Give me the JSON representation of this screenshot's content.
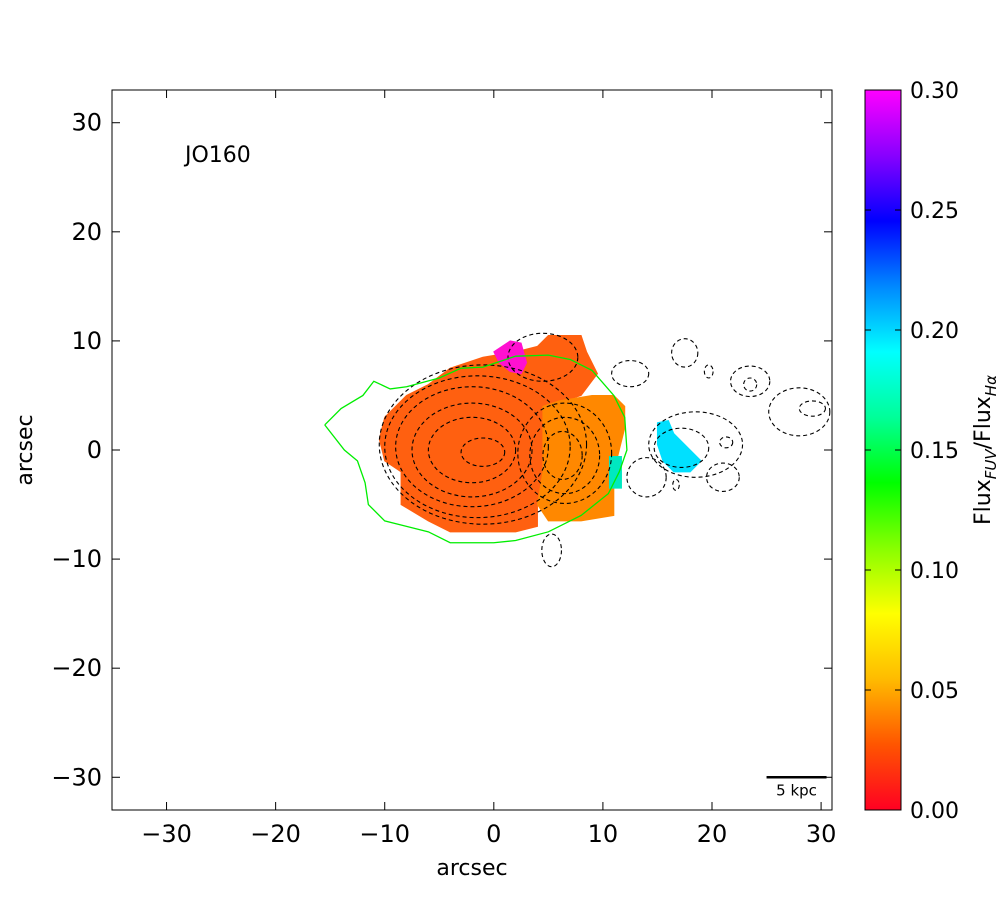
{
  "chart_data": {
    "type": "heatmap",
    "object_label": "JO160",
    "xlabel": "arcsec",
    "ylabel": "arcsec",
    "xlim": [
      -35,
      31
    ],
    "ylim": [
      -33,
      33
    ],
    "x_ticks": [
      -30,
      -20,
      -10,
      0,
      10,
      20,
      30
    ],
    "x_tick_labels": [
      "−30",
      "−20",
      "−10",
      "0",
      "10",
      "20",
      "30"
    ],
    "y_ticks": [
      -30,
      -20,
      -10,
      0,
      10,
      20,
      30
    ],
    "y_tick_labels": [
      "−30",
      "−20",
      "−10",
      "0",
      "10",
      "20",
      "30"
    ],
    "scale_bar": {
      "label": "5 kpc",
      "x_start": 25,
      "x_end": 30.5,
      "y": -30
    },
    "colorbar": {
      "label_main": "Flux",
      "label_sub1": "FUV",
      "label_sep": "/Flux",
      "label_sub2": "Hα",
      "vmin": 0.0,
      "vmax": 0.3,
      "ticks": [
        0.0,
        0.05,
        0.1,
        0.15,
        0.2,
        0.25,
        0.3
      ],
      "tick_labels": [
        "0.00",
        "0.05",
        "0.10",
        "0.15",
        "0.20",
        "0.25",
        "0.30"
      ],
      "colormap_stops": [
        "#ff0022",
        "#ff5500",
        "#ffbb00",
        "#ffff00",
        "#88ff00",
        "#00ff00",
        "#00ff99",
        "#00ffff",
        "#0088ff",
        "#0000ff",
        "#8800ff",
        "#ff00ff"
      ]
    },
    "regions": [
      {
        "name": "main-body",
        "value": 0.03,
        "color": "#ff6010",
        "polygon": [
          [
            -10,
            3
          ],
          [
            -8,
            5
          ],
          [
            -6,
            6
          ],
          [
            -4,
            7.5
          ],
          [
            -1,
            8.5
          ],
          [
            2,
            9
          ],
          [
            4,
            9.5
          ],
          [
            5,
            10.5
          ],
          [
            8,
            10.5
          ],
          [
            8.5,
            9
          ],
          [
            9.5,
            7
          ],
          [
            8,
            5
          ],
          [
            5,
            4
          ],
          [
            4.5,
            2
          ],
          [
            4.5,
            -2
          ],
          [
            4,
            -5
          ],
          [
            4,
            -7
          ],
          [
            2,
            -7.5
          ],
          [
            -4,
            -7.5
          ],
          [
            -6,
            -6.5
          ],
          [
            -8.5,
            -5
          ],
          [
            -8.5,
            -2
          ],
          [
            -10,
            -1
          ],
          [
            -10.5,
            1
          ]
        ]
      },
      {
        "name": "east-offset",
        "value": 0.04,
        "color": "#ff8800",
        "polygon": [
          [
            4.5,
            4
          ],
          [
            6,
            4.5
          ],
          [
            9,
            5
          ],
          [
            11,
            5
          ],
          [
            12,
            4
          ],
          [
            12,
            2
          ],
          [
            11.5,
            0
          ],
          [
            11,
            -2
          ],
          [
            11,
            -4
          ],
          [
            11,
            -6
          ],
          [
            8,
            -6.5
          ],
          [
            5,
            -6.5
          ],
          [
            4,
            -5
          ],
          [
            4.5,
            -2
          ],
          [
            4.5,
            2
          ]
        ]
      },
      {
        "name": "north-knot",
        "value": 0.28,
        "color": "#ff10d0",
        "polygon": [
          [
            0,
            9
          ],
          [
            1.5,
            10
          ],
          [
            2.5,
            9.8
          ],
          [
            3,
            8
          ],
          [
            2.5,
            7
          ],
          [
            1.5,
            7.2
          ],
          [
            0.5,
            8
          ]
        ]
      },
      {
        "name": "tail-knot-1",
        "value": 0.17,
        "color": "#00e0ff",
        "polygon": [
          [
            15,
            2.5
          ],
          [
            16,
            2.7
          ],
          [
            16.5,
            1.5
          ],
          [
            18,
            0
          ],
          [
            19,
            -1
          ],
          [
            18,
            -2
          ],
          [
            16.5,
            -2
          ],
          [
            15.5,
            -1
          ],
          [
            15,
            0.5
          ]
        ]
      },
      {
        "name": "tail-knot-2",
        "value": 0.16,
        "color": "#00e8c0",
        "polygon": [
          [
            10.6,
            -0.6
          ],
          [
            11.7,
            -0.6
          ],
          [
            11.7,
            -3.5
          ],
          [
            10.6,
            -3.5
          ]
        ]
      }
    ],
    "green_contour": [
      [
        -15.5,
        2.3
      ],
      [
        -14,
        3.8
      ],
      [
        -12,
        5
      ],
      [
        -11,
        6.3
      ],
      [
        -9.5,
        5.6
      ],
      [
        -8,
        5.8
      ],
      [
        -5,
        6.6
      ],
      [
        -3,
        7.5
      ],
      [
        -1,
        7.6
      ],
      [
        2,
        8.6
      ],
      [
        5,
        8.7
      ],
      [
        7,
        8.3
      ],
      [
        9,
        7.3
      ],
      [
        11,
        5
      ],
      [
        12,
        3
      ],
      [
        12.2,
        0
      ],
      [
        11.5,
        -2
      ],
      [
        10.5,
        -4
      ],
      [
        8,
        -6
      ],
      [
        5,
        -7.5
      ],
      [
        2,
        -8.3
      ],
      [
        0,
        -8.5
      ],
      [
        -2,
        -8.5
      ],
      [
        -4,
        -8.5
      ],
      [
        -6,
        -7.5
      ],
      [
        -8,
        -7
      ],
      [
        -10,
        -6.5
      ],
      [
        -11.5,
        -5
      ],
      [
        -11.8,
        -3
      ],
      [
        -12.5,
        -1
      ],
      [
        -13.7,
        0
      ],
      [
        -15.5,
        2.3
      ]
    ],
    "dashed_contours": [
      {
        "cx": -1,
        "cy": -0.2,
        "rx": 2,
        "ry": 1.3
      },
      {
        "cx": -2,
        "cy": 0,
        "rx": 4,
        "ry": 3
      },
      {
        "cx": -2,
        "cy": 0,
        "rx": 5.5,
        "ry": 4.3
      },
      {
        "cx": -2,
        "cy": 0.3,
        "rx": 7,
        "ry": 5.5
      },
      {
        "cx": -1.5,
        "cy": 0.3,
        "rx": 8.5,
        "ry": 6.5
      },
      {
        "cx": -1,
        "cy": 0.5,
        "rx": 9.5,
        "ry": 7.3
      },
      {
        "cx": 6.3,
        "cy": -0.5,
        "rx": 1.8,
        "ry": 2.2
      },
      {
        "cx": 6.5,
        "cy": -0.5,
        "rx": 3.2,
        "ry": 3.5
      },
      {
        "cx": 6.5,
        "cy": -0.3,
        "rx": 4.3,
        "ry": 4.6
      },
      {
        "cx": 4.5,
        "cy": 8.5,
        "rx": 3.2,
        "ry": 2.2
      },
      {
        "cx": 12.5,
        "cy": 7,
        "rx": 1.7,
        "ry": 1.2
      },
      {
        "cx": 17.5,
        "cy": 8.9,
        "rx": 1.2,
        "ry": 1.3
      },
      {
        "cx": 19.7,
        "cy": 7.2,
        "rx": 0.4,
        "ry": 0.6
      },
      {
        "cx": 23.5,
        "cy": 6.3,
        "rx": 1.8,
        "ry": 1.4
      },
      {
        "cx": 23.5,
        "cy": 6,
        "rx": 0.6,
        "ry": 0.6
      },
      {
        "cx": 28,
        "cy": 3.5,
        "rx": 2.8,
        "ry": 2.2
      },
      {
        "cx": 29.2,
        "cy": 3.8,
        "rx": 1.2,
        "ry": 0.7
      },
      {
        "cx": 18.5,
        "cy": 0.5,
        "rx": 4.3,
        "ry": 3
      },
      {
        "cx": 17.2,
        "cy": 0.2,
        "rx": 2.5,
        "ry": 1.8
      },
      {
        "cx": 21.3,
        "cy": 0.7,
        "rx": 0.6,
        "ry": 0.5
      },
      {
        "cx": 21,
        "cy": -2.5,
        "rx": 1.5,
        "ry": 1.3
      },
      {
        "cx": 16.7,
        "cy": -3.2,
        "rx": 0.3,
        "ry": 0.5
      },
      {
        "cx": 14,
        "cy": -2.5,
        "rx": 1.8,
        "ry": 1.8
      },
      {
        "cx": 5.3,
        "cy": -9.2,
        "rx": 0.9,
        "ry": 1.5
      }
    ]
  }
}
